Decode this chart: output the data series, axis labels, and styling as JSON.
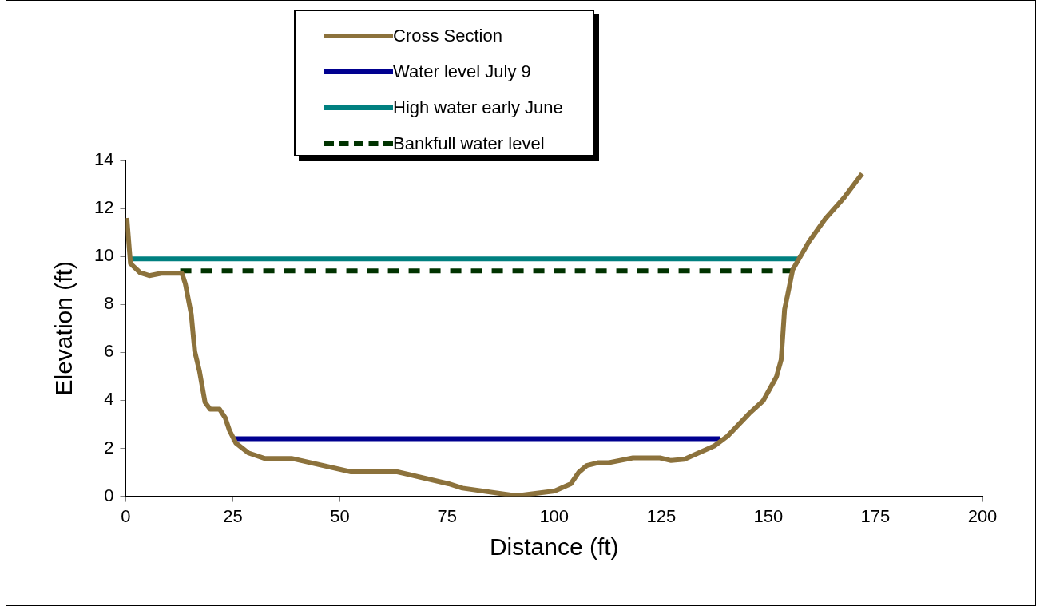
{
  "chart_data": {
    "type": "line",
    "xlabel": "Distance (ft)",
    "ylabel": "Elevation (ft)",
    "xlim": [
      0,
      200
    ],
    "xticks": [
      0,
      25,
      50,
      75,
      100,
      125,
      150,
      175,
      200
    ],
    "ylim": [
      0,
      14
    ],
    "yticks": [
      0,
      2,
      4,
      6,
      8,
      10,
      12,
      14
    ],
    "grid": false,
    "legend": "top",
    "marker": "none",
    "series": [
      {
        "name": "Cross Section",
        "color": "#8c723c",
        "line_style": "solid",
        "x": [
          0.25,
          1.1,
          3.3,
          5.5,
          8.3,
          13.1,
          13.9,
          15.3,
          16.1,
          17.2,
          18.5,
          19.7,
          21.9,
          23.2,
          24.2,
          25.7,
          28.6,
          32.4,
          38.7,
          52.6,
          63.4,
          68.4,
          75.4,
          78.6,
          91.2,
          100.1,
          103.9,
          105.7,
          107.6,
          110.2,
          112.7,
          118.4,
          124.7,
          127.3,
          130.4,
          133,
          137.4,
          140.5,
          145.6,
          148.8,
          151.9,
          153,
          153.8,
          154.5,
          155.7,
          159.5,
          163.3,
          167.7,
          171.9
        ],
        "values": [
          11.6,
          9.7,
          9.33,
          9.2,
          9.3,
          9.3,
          8.86,
          7.57,
          6.04,
          5.22,
          3.92,
          3.63,
          3.63,
          3.28,
          2.75,
          2.22,
          1.81,
          1.58,
          1.58,
          1.02,
          1.02,
          0.81,
          0.52,
          0.34,
          0.02,
          0.22,
          0.52,
          0.99,
          1.28,
          1.4,
          1.4,
          1.6,
          1.6,
          1.49,
          1.54,
          1.75,
          2.1,
          2.51,
          3.46,
          3.98,
          4.98,
          5.69,
          7.8,
          8.39,
          9.45,
          10.62,
          11.57,
          12.45,
          13.45
        ]
      },
      {
        "name": "Water level July 9",
        "color": "#000090",
        "line_style": "solid",
        "x": [
          24.7,
          138.8
        ],
        "values": [
          2.4,
          2.4
        ]
      },
      {
        "name": "High water early June",
        "color": "#008080",
        "line_style": "solid",
        "x": [
          1.3,
          157.3
        ],
        "values": [
          9.9,
          9.9
        ]
      },
      {
        "name": "Bankfull water level",
        "color": "#003300",
        "line_style": "dashed",
        "x": [
          12.7,
          155.4
        ],
        "values": [
          9.4,
          9.4
        ]
      }
    ]
  }
}
